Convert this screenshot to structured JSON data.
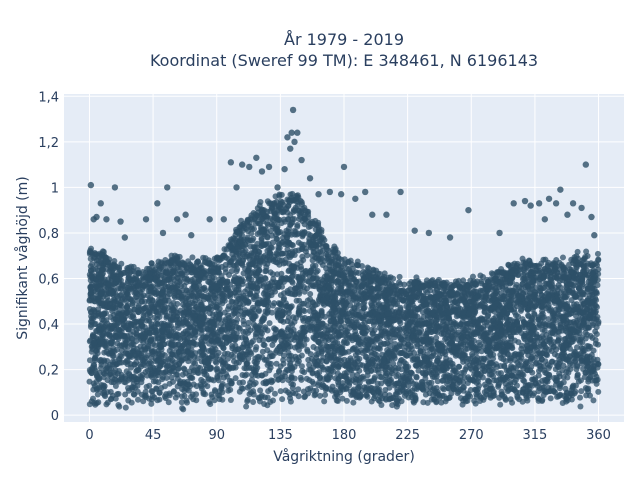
{
  "chart_data": {
    "type": "scatter",
    "title_line1": "År 1979 - 2019",
    "title_line2": "Koordinat (Sweref 99 TM): E 348461, N 6196143",
    "xlabel": "Vågriktning (grader)",
    "ylabel": "Signifikant våghöjd (m)",
    "xlim": [
      -18,
      378
    ],
    "ylim": [
      -0.03,
      1.41
    ],
    "x_ticks": [
      0,
      45,
      90,
      135,
      180,
      225,
      270,
      315,
      360
    ],
    "x_tick_labels": [
      "0",
      "45",
      "90",
      "135",
      "180",
      "225",
      "270",
      "315",
      "360"
    ],
    "y_ticks": [
      0,
      0.2,
      0.4,
      0.6,
      0.8,
      1.0,
      1.2,
      1.4
    ],
    "y_tick_labels": [
      "0",
      "0,2",
      "0,4",
      "0,6",
      "0,8",
      "1",
      "1,2",
      "1,4"
    ],
    "grid": true,
    "marker_color": "#2e5068",
    "dense_band": [
      [
        0,
        0.04,
        0.74
      ],
      [
        10,
        0.04,
        0.72
      ],
      [
        20,
        0.04,
        0.66
      ],
      [
        30,
        0.04,
        0.64
      ],
      [
        45,
        0.04,
        0.66
      ],
      [
        60,
        0.04,
        0.7
      ],
      [
        75,
        0.04,
        0.68
      ],
      [
        90,
        0.04,
        0.68
      ],
      [
        100,
        0.05,
        0.78
      ],
      [
        110,
        0.05,
        0.86
      ],
      [
        120,
        0.05,
        0.92
      ],
      [
        130,
        0.05,
        0.96
      ],
      [
        140,
        0.05,
        0.98
      ],
      [
        150,
        0.05,
        0.96
      ],
      [
        160,
        0.05,
        0.86
      ],
      [
        170,
        0.05,
        0.74
      ],
      [
        180,
        0.05,
        0.7
      ],
      [
        190,
        0.05,
        0.66
      ],
      [
        200,
        0.05,
        0.64
      ],
      [
        210,
        0.05,
        0.62
      ],
      [
        225,
        0.05,
        0.58
      ],
      [
        240,
        0.05,
        0.6
      ],
      [
        255,
        0.05,
        0.58
      ],
      [
        270,
        0.05,
        0.6
      ],
      [
        285,
        0.05,
        0.62
      ],
      [
        300,
        0.05,
        0.66
      ],
      [
        315,
        0.05,
        0.68
      ],
      [
        330,
        0.05,
        0.68
      ],
      [
        345,
        0.04,
        0.7
      ],
      [
        360,
        0.04,
        0.7
      ]
    ],
    "outliers": [
      [
        1,
        1.01
      ],
      [
        3,
        0.86
      ],
      [
        5,
        0.87
      ],
      [
        8,
        0.93
      ],
      [
        12,
        0.86
      ],
      [
        18,
        1.0
      ],
      [
        22,
        0.85
      ],
      [
        25,
        0.78
      ],
      [
        40,
        0.86
      ],
      [
        48,
        0.93
      ],
      [
        52,
        0.8
      ],
      [
        55,
        1.0
      ],
      [
        62,
        0.86
      ],
      [
        68,
        0.88
      ],
      [
        72,
        0.79
      ],
      [
        85,
        0.86
      ],
      [
        95,
        0.86
      ],
      [
        100,
        1.11
      ],
      [
        104,
        1.0
      ],
      [
        108,
        1.1
      ],
      [
        113,
        1.09
      ],
      [
        118,
        1.13
      ],
      [
        122,
        1.07
      ],
      [
        127,
        1.09
      ],
      [
        133,
        1.0
      ],
      [
        138,
        1.08
      ],
      [
        140,
        1.22
      ],
      [
        142,
        1.17
      ],
      [
        143,
        1.24
      ],
      [
        144,
        1.34
      ],
      [
        145,
        1.2
      ],
      [
        147,
        1.24
      ],
      [
        150,
        1.12
      ],
      [
        156,
        1.04
      ],
      [
        162,
        0.97
      ],
      [
        170,
        0.98
      ],
      [
        178,
        0.97
      ],
      [
        180,
        1.09
      ],
      [
        188,
        0.95
      ],
      [
        195,
        0.98
      ],
      [
        200,
        0.88
      ],
      [
        210,
        0.88
      ],
      [
        220,
        0.98
      ],
      [
        230,
        0.81
      ],
      [
        240,
        0.8
      ],
      [
        255,
        0.78
      ],
      [
        268,
        0.9
      ],
      [
        290,
        0.8
      ],
      [
        300,
        0.93
      ],
      [
        308,
        0.94
      ],
      [
        312,
        0.92
      ],
      [
        318,
        0.93
      ],
      [
        322,
        0.86
      ],
      [
        325,
        0.95
      ],
      [
        330,
        0.93
      ],
      [
        333,
        0.99
      ],
      [
        338,
        0.88
      ],
      [
        342,
        0.93
      ],
      [
        348,
        0.91
      ],
      [
        351,
        1.1
      ],
      [
        355,
        0.87
      ],
      [
        357,
        0.79
      ]
    ]
  }
}
